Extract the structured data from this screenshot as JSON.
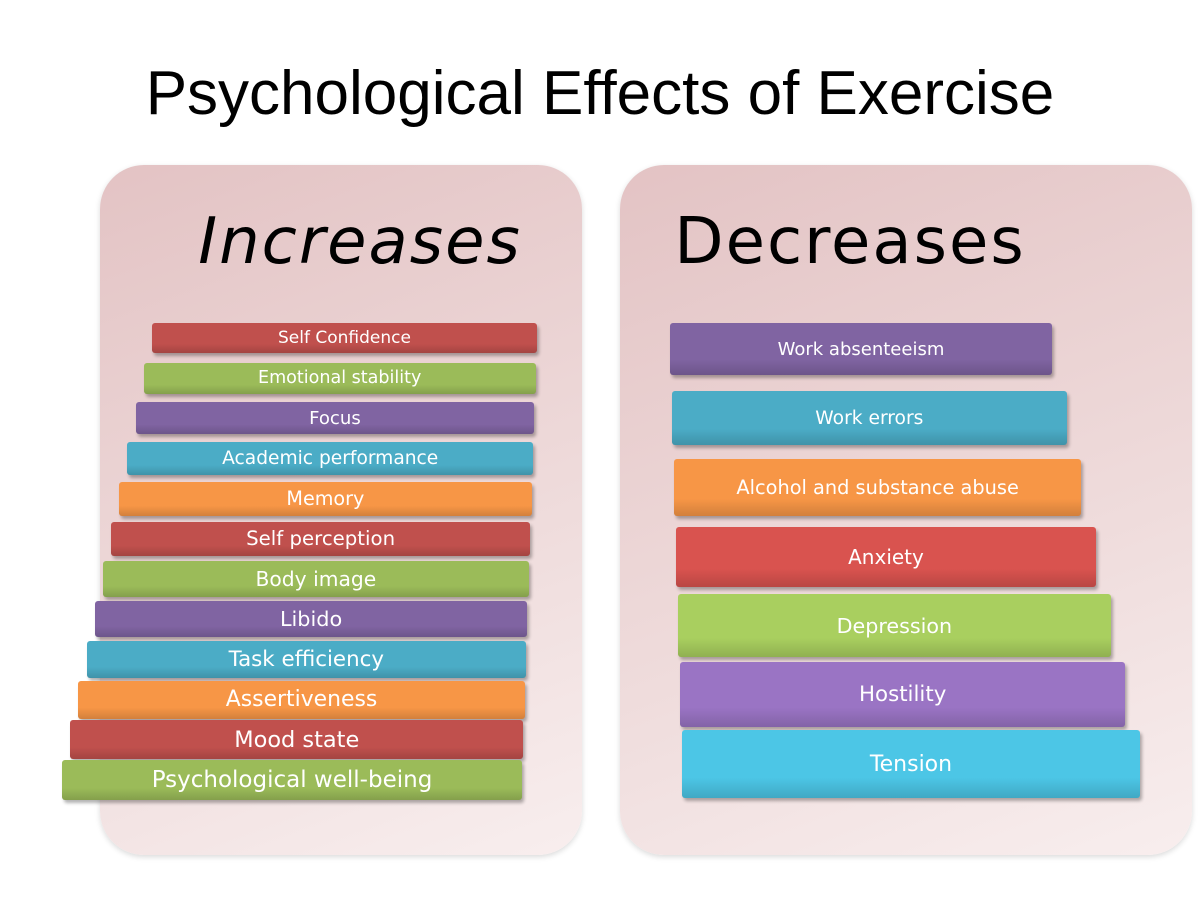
{
  "title": "Psychological Effects of Exercise",
  "panels": [
    {
      "heading": "Increases",
      "items": [
        {
          "label": "Self Confidence",
          "color": "#c0504d"
        },
        {
          "label": "Emotional stability",
          "color": "#9bbb59"
        },
        {
          "label": "Focus",
          "color": "#8064a2"
        },
        {
          "label": "Academic performance",
          "color": "#4bacc6"
        },
        {
          "label": "Memory",
          "color": "#f79646"
        },
        {
          "label": "Self perception",
          "color": "#c0504d"
        },
        {
          "label": "Body image",
          "color": "#9bbb59"
        },
        {
          "label": "Libido",
          "color": "#8064a2"
        },
        {
          "label": "Task efficiency",
          "color": "#4bacc6"
        },
        {
          "label": "Assertiveness",
          "color": "#f79646"
        },
        {
          "label": "Mood state",
          "color": "#c0504d"
        },
        {
          "label": "Psychological well-being",
          "color": "#9bbb59"
        }
      ]
    },
    {
      "heading": "Decreases",
      "items": [
        {
          "label": "Work absenteeism",
          "color": "#8064a2"
        },
        {
          "label": "Work errors",
          "color": "#4bacc6"
        },
        {
          "label": "Alcohol and substance abuse",
          "color": "#f79646"
        },
        {
          "label": "Anxiety",
          "color": "#d9534f"
        },
        {
          "label": "Depression",
          "color": "#a9cf5f"
        },
        {
          "label": "Hostility",
          "color": "#9a74c4"
        },
        {
          "label": "Tension",
          "color": "#4cc6e6"
        }
      ]
    }
  ]
}
